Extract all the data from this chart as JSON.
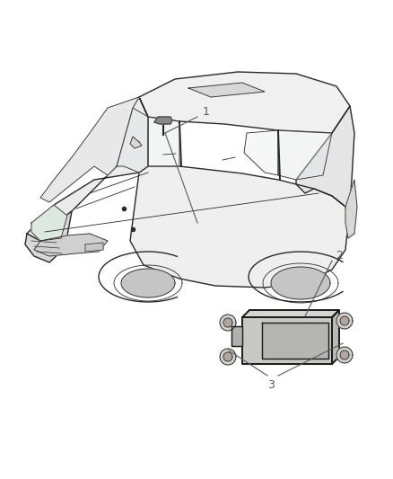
{
  "bg_color": "#ffffff",
  "fig_width": 4.38,
  "fig_height": 5.33,
  "dpi": 100,
  "label_1": "1",
  "label_2": "2",
  "label_3": "3",
  "line_color": "#3a3a3a",
  "text_color": "#5a5a5a",
  "font_size": 9,
  "car_color": "#e8e8e8",
  "car_stroke": "#2a2a2a"
}
